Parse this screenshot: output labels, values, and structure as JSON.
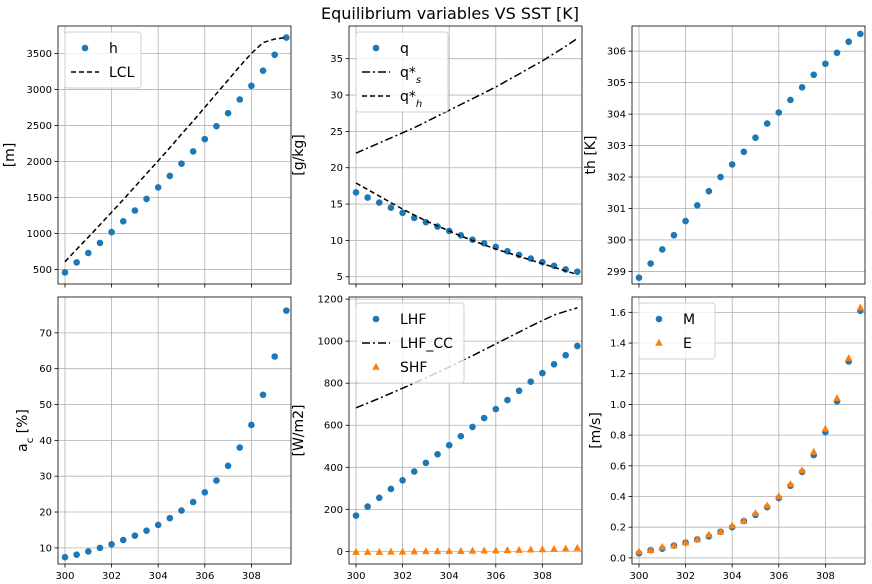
{
  "title": "Equilibrium variables VS SST [K]",
  "colors": {
    "blue": "#1f77b4",
    "orange": "#ff7f0e",
    "black": "#000000"
  },
  "chart_data": [
    {
      "id": "h",
      "type": "scatter",
      "ylabel": "[m]",
      "xlim": [
        299.7,
        309.7
      ],
      "ylim": [
        300,
        3880
      ],
      "xticks": [
        300,
        302,
        304,
        306,
        308
      ],
      "xticklabels": [],
      "yticks": [
        500,
        1000,
        1500,
        2000,
        2500,
        3000,
        3500
      ],
      "yticklabels": [
        "500",
        "1000",
        "1500",
        "2000",
        "2500",
        "3000",
        "3500"
      ],
      "legend": "top-left",
      "grid": true,
      "x": [
        300,
        300.5,
        301,
        301.5,
        302,
        302.5,
        303,
        303.5,
        304,
        304.5,
        305,
        305.5,
        306,
        306.5,
        307,
        307.5,
        308,
        308.5,
        309,
        309.5
      ],
      "series": [
        {
          "name": "h",
          "kind": "marker",
          "marker": "circle",
          "color": "#1f77b4",
          "y": [
            460,
            600,
            730,
            870,
            1020,
            1170,
            1320,
            1480,
            1640,
            1800,
            1970,
            2140,
            2310,
            2490,
            2670,
            2860,
            3050,
            3260,
            3480,
            3720
          ]
        },
        {
          "name": "LCL",
          "kind": "line",
          "dash": "5,3",
          "color": "#000000",
          "y": [
            610,
            780,
            950,
            1120,
            1295,
            1470,
            1650,
            1830,
            2010,
            2190,
            2380,
            2560,
            2750,
            2940,
            3130,
            3320,
            3500,
            3650,
            3700,
            3720
          ]
        }
      ]
    },
    {
      "id": "q",
      "type": "scatter",
      "ylabel": "[g/kg]",
      "xlim": [
        299.7,
        309.7
      ],
      "ylim": [
        4.0,
        39.5
      ],
      "xticks": [
        300,
        302,
        304,
        306,
        308
      ],
      "xticklabels": [],
      "yticks": [
        5,
        10,
        15,
        20,
        25,
        30,
        35
      ],
      "yticklabels": [
        "5",
        "10",
        "15",
        "20",
        "25",
        "30",
        "35"
      ],
      "legend": "top-left",
      "grid": true,
      "x": [
        300,
        300.5,
        301,
        301.5,
        302,
        302.5,
        303,
        303.5,
        304,
        304.5,
        305,
        305.5,
        306,
        306.5,
        307,
        307.5,
        308,
        308.5,
        309,
        309.5
      ],
      "series": [
        {
          "name": "q",
          "kind": "marker",
          "marker": "circle",
          "color": "#1f77b4",
          "y": [
            16.6,
            15.9,
            15.2,
            14.5,
            13.8,
            13.1,
            12.5,
            11.9,
            11.3,
            10.7,
            10.1,
            9.6,
            9.1,
            8.5,
            8.0,
            7.5,
            7.0,
            6.5,
            6.0,
            5.7
          ]
        },
        {
          "name": "q*",
          "sub": "s",
          "kind": "line",
          "dash": "8,3,2,3",
          "color": "#000000",
          "y": [
            22.0,
            22.7,
            23.4,
            24.1,
            24.8,
            25.5,
            26.3,
            27.1,
            27.9,
            28.7,
            29.5,
            30.3,
            31.1,
            32.0,
            32.9,
            33.8,
            34.7,
            35.7,
            36.7,
            37.8
          ]
        },
        {
          "name": "q*",
          "sub": "h",
          "kind": "line",
          "dash": "5,3",
          "color": "#000000",
          "y": [
            17.9,
            17.0,
            16.1,
            15.2,
            14.3,
            13.5,
            12.7,
            12.0,
            11.3,
            10.6,
            10.0,
            9.4,
            8.8,
            8.3,
            7.8,
            7.3,
            6.8,
            6.3,
            5.8,
            5.3
          ]
        }
      ]
    },
    {
      "id": "th",
      "type": "scatter",
      "ylabel": "th [K]",
      "xlim": [
        299.7,
        309.7
      ],
      "ylim": [
        298.6,
        306.8
      ],
      "xticks": [
        300,
        302,
        304,
        306,
        308
      ],
      "xticklabels": [],
      "yticks": [
        299,
        300,
        301,
        302,
        303,
        304,
        305,
        306
      ],
      "yticklabels": [
        "299",
        "300",
        "301",
        "302",
        "303",
        "304",
        "305",
        "306"
      ],
      "legend": "none",
      "grid": true,
      "x": [
        300,
        300.5,
        301,
        301.5,
        302,
        302.5,
        303,
        303.5,
        304,
        304.5,
        305,
        305.5,
        306,
        306.5,
        307,
        307.5,
        308,
        308.5,
        309,
        309.5
      ],
      "series": [
        {
          "name": "th",
          "kind": "marker",
          "marker": "circle",
          "color": "#1f77b4",
          "y": [
            298.8,
            299.25,
            299.7,
            300.15,
            300.6,
            301.1,
            301.55,
            302.0,
            302.4,
            302.8,
            303.25,
            303.7,
            304.05,
            304.45,
            304.85,
            305.25,
            305.6,
            305.95,
            306.3,
            306.55
          ]
        }
      ]
    },
    {
      "id": "ac",
      "type": "scatter",
      "ylabel": "a",
      "ylabel_sub": "c",
      "ylabel_tail": " [%]",
      "xlim": [
        299.7,
        309.7
      ],
      "ylim": [
        5.5,
        80.0
      ],
      "xticks": [
        300,
        302,
        304,
        306,
        308
      ],
      "xticklabels": [
        "300",
        "302",
        "304",
        "306",
        "308"
      ],
      "yticks": [
        10,
        20,
        30,
        40,
        50,
        60,
        70
      ],
      "yticklabels": [
        "10",
        "20",
        "30",
        "40",
        "50",
        "60",
        "70"
      ],
      "legend": "none",
      "grid": true,
      "x": [
        300,
        300.5,
        301,
        301.5,
        302,
        302.5,
        303,
        303.5,
        304,
        304.5,
        305,
        305.5,
        306,
        306.5,
        307,
        307.5,
        308,
        308.5,
        309,
        309.5
      ],
      "series": [
        {
          "name": "ac",
          "kind": "marker",
          "marker": "circle",
          "color": "#1f77b4",
          "y": [
            7.4,
            8.1,
            9.0,
            10.0,
            11.0,
            12.2,
            13.4,
            14.8,
            16.4,
            18.3,
            20.4,
            22.8,
            25.5,
            28.8,
            32.9,
            38.0,
            44.3,
            52.7,
            63.4,
            76.2
          ]
        }
      ]
    },
    {
      "id": "flux",
      "type": "scatter",
      "ylabel": "[W/m2]",
      "xlim": [
        299.7,
        309.7
      ],
      "ylim": [
        -60,
        1210
      ],
      "xticks": [
        300,
        302,
        304,
        306,
        308
      ],
      "xticklabels": [
        "300",
        "302",
        "304",
        "306",
        "308"
      ],
      "yticks": [
        0,
        200,
        400,
        600,
        800,
        1000,
        1200
      ],
      "yticklabels": [
        "0",
        "200",
        "400",
        "600",
        "800",
        "1000",
        "1200"
      ],
      "legend": "top-left",
      "grid": true,
      "x": [
        300,
        300.5,
        301,
        301.5,
        302,
        302.5,
        303,
        303.5,
        304,
        304.5,
        305,
        305.5,
        306,
        306.5,
        307,
        307.5,
        308,
        308.5,
        309,
        309.5
      ],
      "series": [
        {
          "name": "LHF",
          "kind": "marker",
          "marker": "circle",
          "color": "#1f77b4",
          "y": [
            170,
            213,
            255,
            297,
            338,
            380,
            421,
            462,
            505,
            548,
            592,
            634,
            677,
            720,
            764,
            807,
            848,
            890,
            933,
            977
          ]
        },
        {
          "name": "LHF_CC",
          "kind": "line",
          "dash": "8,3,2,3",
          "color": "#000000",
          "y": [
            683,
            705,
            728,
            752,
            776,
            800,
            825,
            851,
            877,
            904,
            931,
            959,
            987,
            1015,
            1043,
            1071,
            1098,
            1124,
            1142,
            1158
          ]
        },
        {
          "name": "SHF",
          "kind": "marker",
          "marker": "triangle",
          "color": "#ff7f0e",
          "y": [
            -3,
            -3,
            -3,
            -2,
            -2,
            -1,
            0,
            0,
            1,
            1,
            2,
            3,
            4,
            5,
            6,
            8,
            9,
            11,
            13,
            16
          ]
        }
      ]
    },
    {
      "id": "ME",
      "type": "scatter",
      "ylabel": "[m/s]",
      "xlim": [
        299.7,
        309.7
      ],
      "ylim": [
        -0.04,
        1.7
      ],
      "xticks": [
        300,
        302,
        304,
        306,
        308
      ],
      "xticklabels": [
        "300",
        "302",
        "304",
        "306",
        "308"
      ],
      "yticks": [
        0.0,
        0.2,
        0.4,
        0.6,
        0.8,
        1.0,
        1.2,
        1.4,
        1.6
      ],
      "yticklabels": [
        "0.0",
        "0.2",
        "0.4",
        "0.6",
        "0.8",
        "1.0",
        "1.2",
        "1.4",
        "1.6"
      ],
      "legend": "top-left",
      "grid": true,
      "x": [
        300,
        300.5,
        301,
        301.5,
        302,
        302.5,
        303,
        303.5,
        304,
        304.5,
        305,
        305.5,
        306,
        306.5,
        307,
        307.5,
        308,
        308.5,
        309,
        309.5
      ],
      "series": [
        {
          "name": "M",
          "kind": "marker",
          "marker": "circle",
          "color": "#1f77b4",
          "y": [
            0.03,
            0.05,
            0.06,
            0.08,
            0.1,
            0.12,
            0.14,
            0.17,
            0.2,
            0.24,
            0.28,
            0.33,
            0.39,
            0.47,
            0.56,
            0.67,
            0.82,
            1.02,
            1.28,
            1.61
          ]
        },
        {
          "name": "E",
          "kind": "marker",
          "marker": "triangle",
          "color": "#ff7f0e",
          "y": [
            0.04,
            0.05,
            0.07,
            0.08,
            0.1,
            0.12,
            0.15,
            0.17,
            0.21,
            0.24,
            0.29,
            0.34,
            0.4,
            0.48,
            0.57,
            0.69,
            0.84,
            1.04,
            1.3,
            1.63
          ]
        }
      ]
    }
  ]
}
